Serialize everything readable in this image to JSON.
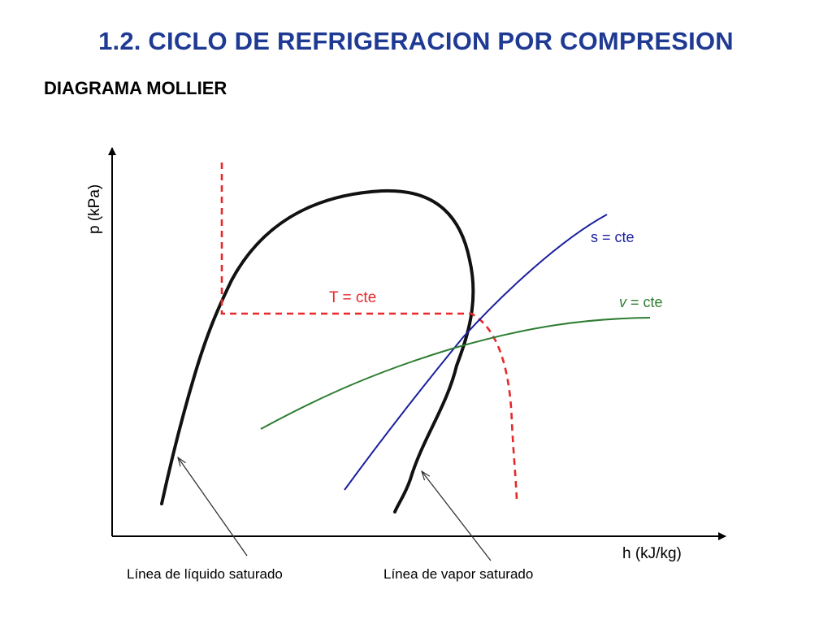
{
  "slide": {
    "title": "1.2. CICLO DE REFRIGERACION POR COMPRESION",
    "subtitle": "DIAGRAMA MOLLIER"
  },
  "diagram": {
    "y_axis_label": "p (kPa)",
    "x_axis_label": "h (kJ/kg)",
    "isotherm_label": "T = cte",
    "isentrope_label": "s = cte",
    "isochore_label_var": "v",
    "isochore_label_rest": " = cte",
    "liquid_line_label": "Línea de líquido saturado",
    "vapor_line_label": "Línea de vapor saturado",
    "colors": {
      "title": "#1f3a93",
      "dome": "#111111",
      "isotherm": "#e8272a",
      "isentrope": "#1b1f9e",
      "isochore": "#2e7d32"
    }
  }
}
